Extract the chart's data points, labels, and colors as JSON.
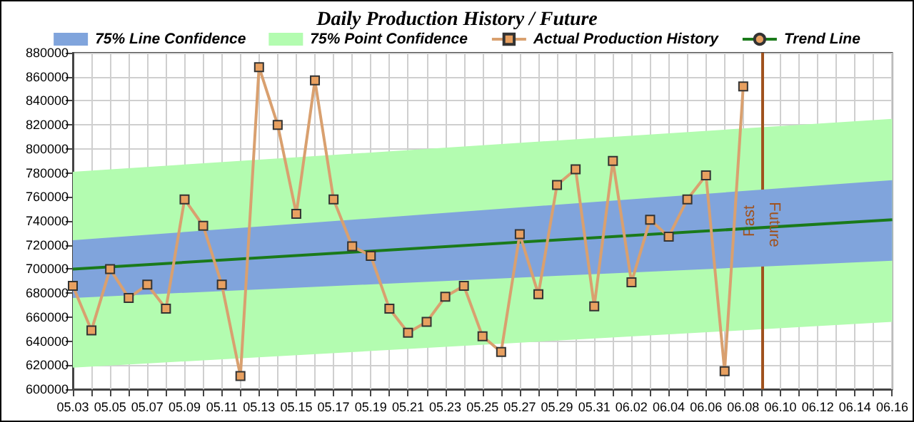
{
  "chart_data": {
    "type": "line",
    "title": "Daily Production History / Future",
    "xlim": [
      "--05-03",
      "--06-16"
    ],
    "xticks": [
      {
        "value": "--05-03",
        "label": "05.03"
      },
      {
        "value": "--05-04",
        "label": null
      },
      {
        "value": "--05-05",
        "label": "05.05"
      },
      {
        "value": "--05-06",
        "label": null
      },
      {
        "value": "--05-07",
        "label": "05.07"
      },
      {
        "value": "--05-08",
        "label": null
      },
      {
        "value": "--05-09",
        "label": "05.09"
      },
      {
        "value": "--05-10",
        "label": null
      },
      {
        "value": "--05-11",
        "label": "05.11"
      },
      {
        "value": "--05-12",
        "label": null
      },
      {
        "value": "--05-13",
        "label": "05.13"
      },
      {
        "value": "--05-14",
        "label": null
      },
      {
        "value": "--05-15",
        "label": "05.15"
      },
      {
        "value": "--05-16",
        "label": null
      },
      {
        "value": "--05-17",
        "label": "05.17"
      },
      {
        "value": "--05-18",
        "label": null
      },
      {
        "value": "--05-19",
        "label": "05.19"
      },
      {
        "value": "--05-20",
        "label": null
      },
      {
        "value": "--05-21",
        "label": "05.21"
      },
      {
        "value": "--05-22",
        "label": null
      },
      {
        "value": "--05-23",
        "label": "05.23"
      },
      {
        "value": "--05-24",
        "label": null
      },
      {
        "value": "--05-25",
        "label": "05.25"
      },
      {
        "value": "--05-26",
        "label": null
      },
      {
        "value": "--05-27",
        "label": "05.27"
      },
      {
        "value": "--05-28",
        "label": null
      },
      {
        "value": "--05-29",
        "label": "05.29"
      },
      {
        "value": "--05-30",
        "label": null
      },
      {
        "value": "--05-31",
        "label": "05.31"
      },
      {
        "value": "--06-01",
        "label": null
      },
      {
        "value": "--06-02",
        "label": "06.02"
      },
      {
        "value": "--06-03",
        "label": null
      },
      {
        "value": "--06-04",
        "label": "06.04"
      },
      {
        "value": "--06-05",
        "label": null
      },
      {
        "value": "--06-06",
        "label": "06.06"
      },
      {
        "value": "--06-07",
        "label": null
      },
      {
        "value": "--06-08",
        "label": "06.08"
      },
      {
        "value": "--06-09",
        "label": null
      },
      {
        "value": "--06-10",
        "label": "06.10"
      },
      {
        "value": "--06-11",
        "label": null
      },
      {
        "value": "--06-12",
        "label": "06.12"
      },
      {
        "value": "--06-13",
        "label": null
      },
      {
        "value": "--06-14",
        "label": "06.14"
      },
      {
        "value": "--06-15",
        "label": null
      },
      {
        "value": "--06-16",
        "label": "06.16"
      }
    ],
    "ylim": [
      600000,
      880000
    ],
    "yticks": [
      600000,
      620000,
      640000,
      660000,
      680000,
      700000,
      720000,
      740000,
      760000,
      780000,
      800000,
      820000,
      840000,
      860000,
      880000
    ],
    "grid": true,
    "legend": "top",
    "marker": "square",
    "line_style": "solid",
    "series": [
      {
        "name": "75% Line Confidence",
        "marker": "none",
        "color": "#80a4dc",
        "x": [
          "--05-03",
          "--06-16"
        ],
        "values": [
          null,
          null
        ],
        "upper": [
          724000,
          774000
        ],
        "lower": [
          676000,
          707000
        ]
      },
      {
        "name": "75% Point Confidence",
        "marker": "none",
        "color": "#b3fcb0",
        "x": [
          "--05-03",
          "--06-16"
        ],
        "values": [
          null,
          null
        ],
        "upper": [
          781000,
          825000
        ],
        "lower": [
          618000,
          656000
        ]
      },
      {
        "name": "Actual Production History",
        "type": "line",
        "color": "#d9a06f",
        "x": [
          "--05-03",
          "--05-04",
          "--05-05",
          "--05-06",
          "--05-07",
          "--05-08",
          "--05-09",
          "--05-10",
          "--05-11",
          "--05-12",
          "--05-13",
          "--05-14",
          "--05-15",
          "--05-16",
          "--05-17",
          "--05-18",
          "--05-19",
          "--05-20",
          "--05-21",
          "--05-22",
          "--05-23",
          "--05-24",
          "--05-25",
          "--05-26",
          "--05-27",
          "--05-28",
          "--05-29",
          "--05-30",
          "--05-31",
          "--06-01",
          "--06-02",
          "--06-03",
          "--06-04",
          "--06-05",
          "--06-06",
          "--06-07",
          "--06-08"
        ],
        "values": [
          686000,
          649000,
          700000,
          676000,
          687000,
          667000,
          758000,
          736000,
          687000,
          611000,
          868000,
          820000,
          746000,
          857000,
          758000,
          719000,
          711000,
          667000,
          647000,
          656000,
          677000,
          686000,
          644000,
          631000,
          729000,
          679000,
          770000,
          783000,
          669000,
          790000,
          689000,
          741000,
          727000,
          758000,
          778000,
          615000,
          852000
        ]
      },
      {
        "name": "Trend Line",
        "color": "#1a7a1a",
        "marker": "none",
        "x": [
          "--05-03",
          "--06-16"
        ],
        "values": [
          700000,
          741000
        ]
      }
    ],
    "ref_lines": [
      {
        "axis": "x",
        "value": "--06-09",
        "label": "Past",
        "color": "#a0521e"
      }
    ],
    "annotations": [
      {
        "text": "Future",
        "x": "--06-09",
        "y": 737000
      }
    ]
  }
}
